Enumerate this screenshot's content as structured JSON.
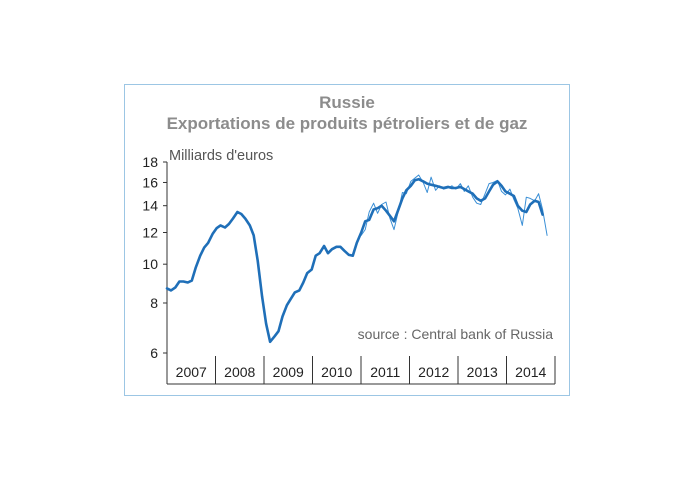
{
  "chart_data": {
    "type": "line",
    "title": "Russie",
    "subtitle": "Exportations de produits pétroliers et de gaz",
    "ylabel": "Milliards d'euros",
    "source": "source : Central bank of Russia",
    "yscale": "log",
    "ylim": [
      6,
      18
    ],
    "yticks": [
      6,
      8,
      10,
      12,
      14,
      16,
      18
    ],
    "ytick_labels": [
      "6",
      "8",
      "10",
      "12",
      "14",
      "16",
      "18"
    ],
    "categories": [
      "2007",
      "2008",
      "2009",
      "2010",
      "2011",
      "2012",
      "2013",
      "2014"
    ],
    "x_range": [
      2007.0,
      2014.83
    ],
    "grid": false,
    "legend": "none",
    "colors": {
      "smoothed": "#1f6fb8",
      "monthly": "#3a8fd6",
      "frame": "#9cc6e4"
    },
    "series": [
      {
        "style": "thick",
        "x": [
          2007.0,
          2007.08,
          2007.17,
          2007.25,
          2007.33,
          2007.42,
          2007.5,
          2007.58,
          2007.67,
          2007.75,
          2007.83,
          2007.92,
          2008.0,
          2008.08,
          2008.17,
          2008.25,
          2008.33,
          2008.42,
          2008.5,
          2008.58,
          2008.67,
          2008.75,
          2008.83,
          2008.92,
          2009.0,
          2009.08,
          2009.17,
          2009.25,
          2009.33,
          2009.42,
          2009.5,
          2009.58,
          2009.67,
          2009.75,
          2009.83,
          2009.92,
          2010.0,
          2010.08,
          2010.17,
          2010.25,
          2010.33,
          2010.42,
          2010.5,
          2010.58,
          2010.67,
          2010.75,
          2010.83,
          2010.92,
          2011.0,
          2011.08,
          2011.17,
          2011.25,
          2011.33,
          2011.42,
          2011.5,
          2011.58,
          2011.67,
          2011.75,
          2011.83,
          2011.92,
          2012.0,
          2012.08,
          2012.17,
          2012.25,
          2012.33,
          2012.42,
          2012.5,
          2012.58,
          2012.67,
          2012.75,
          2012.83,
          2012.92,
          2013.0,
          2013.08,
          2013.17,
          2013.25,
          2013.33,
          2013.42,
          2013.5,
          2013.58,
          2013.67,
          2013.75,
          2013.83,
          2013.92,
          2014.0,
          2014.08,
          2014.17,
          2014.25,
          2014.33,
          2014.42,
          2014.5,
          2014.58
        ],
        "values": [
          8.7,
          8.6,
          8.75,
          9.05,
          9.05,
          9.0,
          9.1,
          9.8,
          10.5,
          11.0,
          11.3,
          11.9,
          12.3,
          12.5,
          12.35,
          12.6,
          13.0,
          13.5,
          13.35,
          13.0,
          12.5,
          11.8,
          10.2,
          8.3,
          7.1,
          6.4,
          6.6,
          6.8,
          7.4,
          7.9,
          8.2,
          8.5,
          8.6,
          9.0,
          9.5,
          9.7,
          10.5,
          10.65,
          11.1,
          10.65,
          10.9,
          11.05,
          11.05,
          10.8,
          10.55,
          10.5,
          11.3,
          12.0,
          12.8,
          12.9,
          13.7,
          13.8,
          14.0,
          13.6,
          13.2,
          12.8,
          13.7,
          14.6,
          15.3,
          15.7,
          16.2,
          16.3,
          16.1,
          15.9,
          15.8,
          15.7,
          15.6,
          15.5,
          15.6,
          15.5,
          15.5,
          15.6,
          15.4,
          15.2,
          15.0,
          14.6,
          14.4,
          14.6,
          15.2,
          15.8,
          16.1,
          15.7,
          15.2,
          15.0,
          14.8,
          14.0,
          13.6,
          13.5,
          14.1,
          14.4,
          14.3,
          13.3
        ]
      },
      {
        "style": "thin",
        "x": [
          2010.92,
          2011.0,
          2011.08,
          2011.17,
          2011.25,
          2011.33,
          2011.42,
          2011.5,
          2011.58,
          2011.67,
          2011.75,
          2011.83,
          2011.92,
          2012.0,
          2012.08,
          2012.17,
          2012.25,
          2012.33,
          2012.42,
          2012.5,
          2012.58,
          2012.67,
          2012.75,
          2012.83,
          2012.92,
          2013.0,
          2013.08,
          2013.17,
          2013.25,
          2013.33,
          2013.42,
          2013.5,
          2013.58,
          2013.67,
          2013.75,
          2013.83,
          2013.92,
          2014.0,
          2014.08,
          2014.17,
          2014.25,
          2014.33,
          2014.42,
          2014.5,
          2014.58,
          2014.67
        ],
        "values": [
          11.8,
          12.2,
          13.5,
          14.2,
          13.4,
          14.1,
          14.3,
          13.0,
          12.2,
          13.6,
          15.1,
          15.0,
          16.1,
          16.4,
          16.7,
          16.0,
          15.1,
          16.5,
          15.3,
          15.7,
          15.4,
          15.5,
          15.7,
          15.4,
          15.9,
          15.2,
          15.7,
          14.7,
          14.2,
          14.1,
          15.0,
          15.9,
          16.0,
          16.2,
          15.2,
          14.9,
          15.4,
          14.5,
          13.8,
          12.5,
          14.7,
          14.6,
          14.4,
          15.0,
          13.7,
          11.8
        ]
      }
    ]
  }
}
